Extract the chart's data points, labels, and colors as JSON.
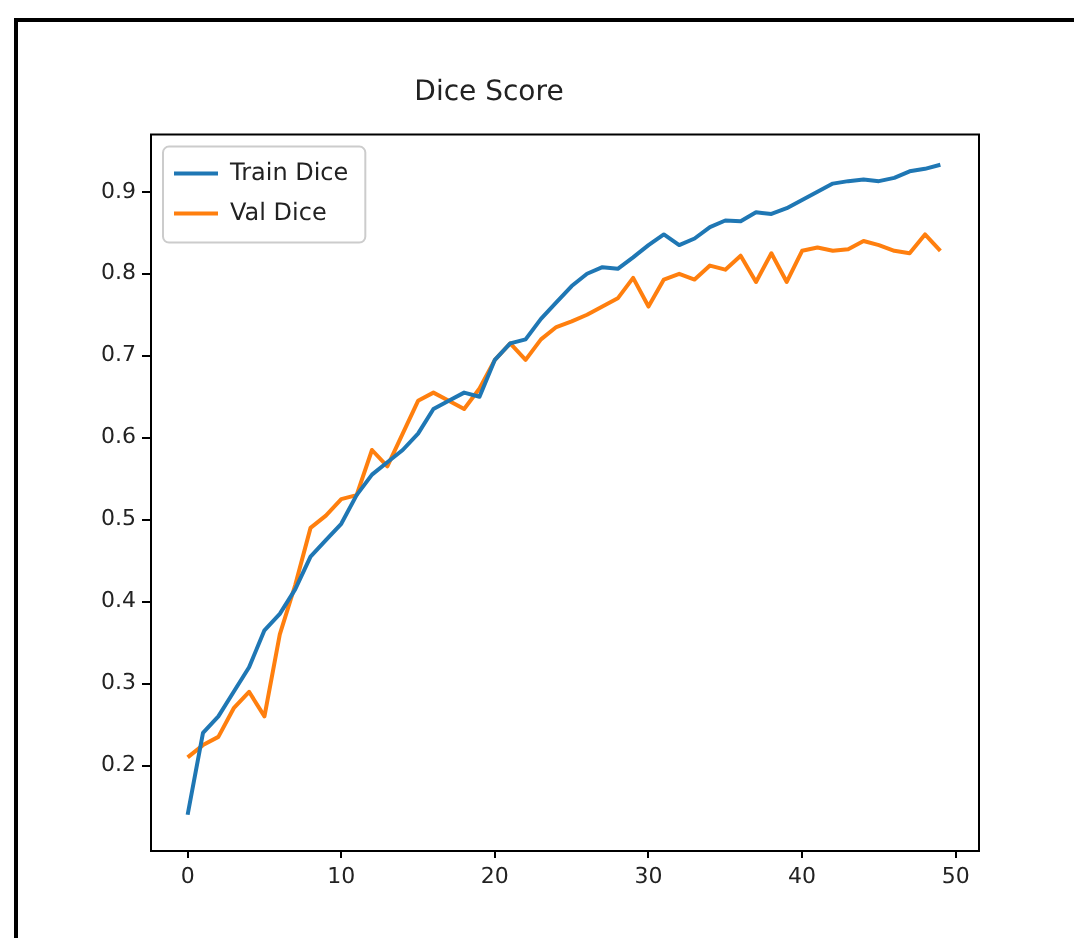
{
  "chart_data": {
    "type": "line",
    "title": "Dice Score",
    "x": [
      0,
      1,
      2,
      3,
      4,
      5,
      6,
      7,
      8,
      9,
      10,
      11,
      12,
      13,
      14,
      15,
      16,
      17,
      18,
      19,
      20,
      21,
      22,
      23,
      24,
      25,
      26,
      27,
      28,
      29,
      30,
      31,
      32,
      33,
      34,
      35,
      36,
      37,
      38,
      39,
      40,
      41,
      42,
      43,
      44,
      45,
      46,
      47,
      48,
      49
    ],
    "series": [
      {
        "name": "Train Dice",
        "color": "#1f77b4",
        "values": [
          0.14,
          0.24,
          0.26,
          0.29,
          0.32,
          0.365,
          0.385,
          0.415,
          0.455,
          0.475,
          0.495,
          0.53,
          0.555,
          0.57,
          0.585,
          0.605,
          0.635,
          0.645,
          0.655,
          0.65,
          0.695,
          0.715,
          0.72,
          0.745,
          0.765,
          0.785,
          0.8,
          0.808,
          0.806,
          0.82,
          0.835,
          0.848,
          0.835,
          0.843,
          0.857,
          0.865,
          0.864,
          0.875,
          0.873,
          0.88,
          0.89,
          0.9,
          0.91,
          0.913,
          0.915,
          0.913,
          0.917,
          0.925,
          0.928,
          0.933
        ]
      },
      {
        "name": "Val Dice",
        "color": "#ff7f0e",
        "values": [
          0.21,
          0.225,
          0.235,
          0.27,
          0.29,
          0.26,
          0.36,
          0.42,
          0.49,
          0.505,
          0.525,
          0.53,
          0.585,
          0.565,
          0.605,
          0.645,
          0.655,
          0.645,
          0.635,
          0.66,
          0.695,
          0.715,
          0.695,
          0.72,
          0.735,
          0.742,
          0.75,
          0.76,
          0.77,
          0.795,
          0.76,
          0.793,
          0.8,
          0.793,
          0.81,
          0.805,
          0.822,
          0.79,
          0.825,
          0.79,
          0.828,
          0.832,
          0.828,
          0.83,
          0.84,
          0.835,
          0.828,
          0.825,
          0.848,
          0.828
        ]
      }
    ],
    "xlim": [
      -2.45,
      51.45
    ],
    "xticks": [
      0,
      10,
      20,
      30,
      40,
      50
    ],
    "ylim": [
      0.097,
      0.971
    ],
    "yticks": [
      0.2,
      0.3,
      0.4,
      0.5,
      0.6,
      0.7,
      0.8,
      0.9
    ],
    "legend": "top left",
    "grid": false,
    "marker": "none",
    "line_style": "solid"
  }
}
